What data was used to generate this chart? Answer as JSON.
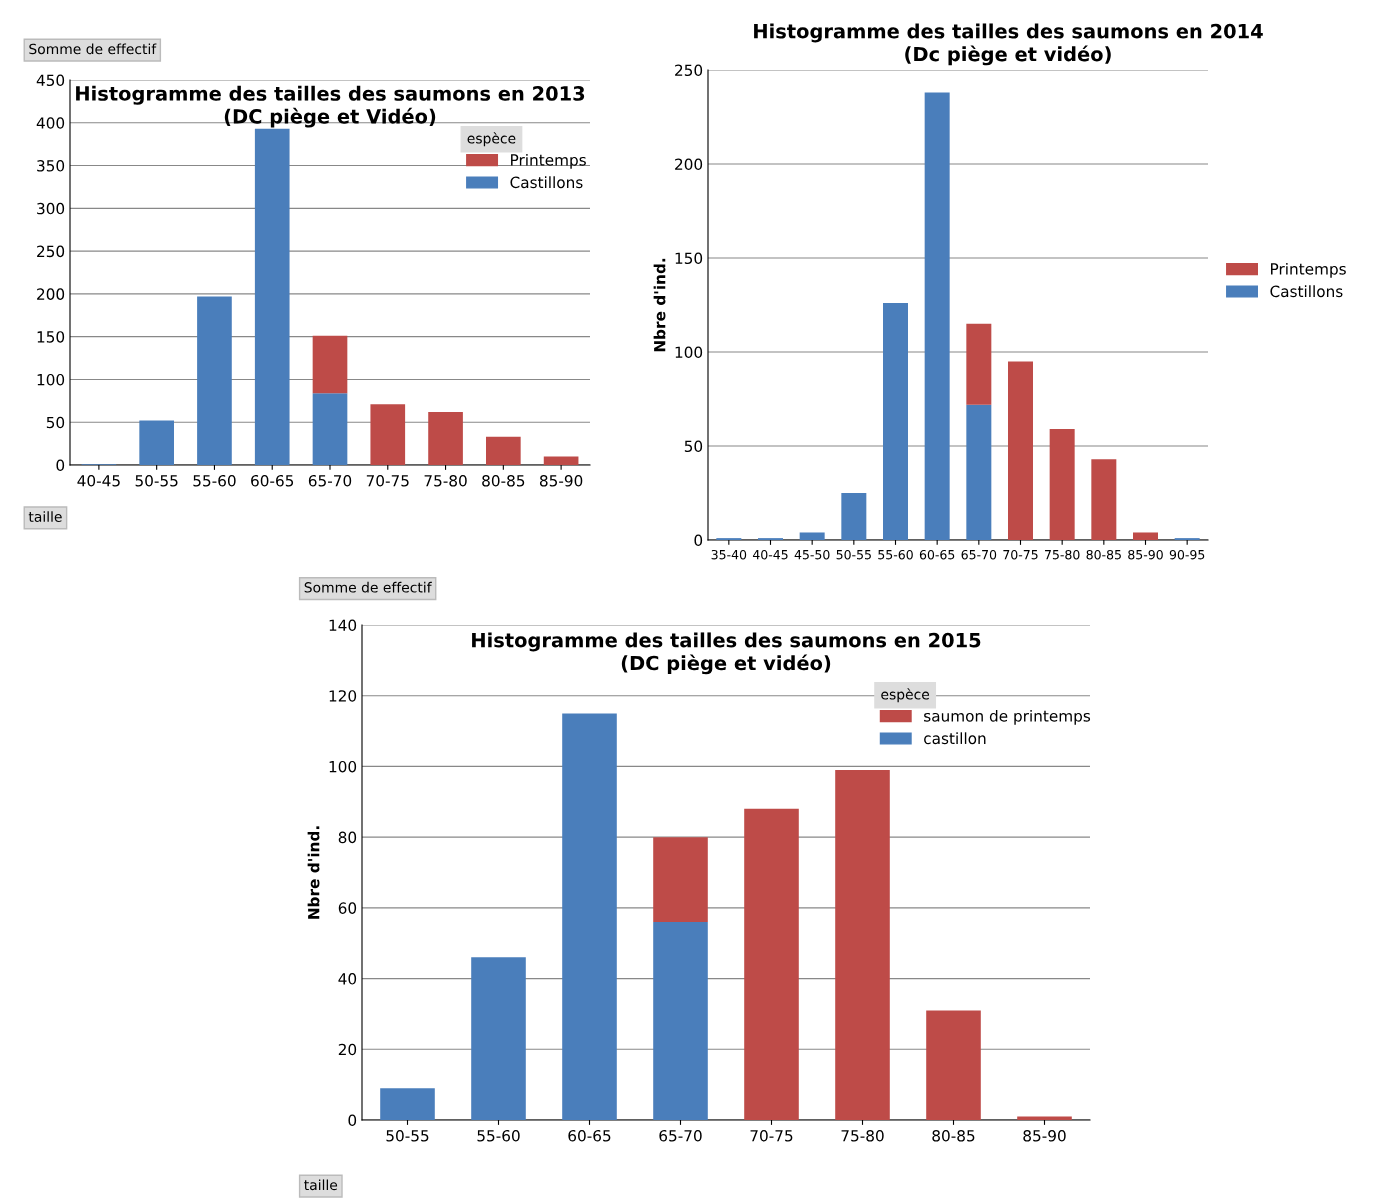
{
  "chart_data": [
    {
      "type": "bar",
      "stacked": true,
      "title": "Histogramme des tailles des saumons en 2013\n(DC piège et Vidéo)",
      "categories": [
        "40-45",
        "50-55",
        "55-60",
        "60-65",
        "65-70",
        "70-75",
        "75-80",
        "80-85",
        "85-90"
      ],
      "series": [
        {
          "name": "Castillons",
          "color": "#4a7ebb",
          "values": [
            1,
            52,
            197,
            393,
            84,
            0,
            0,
            0,
            0
          ]
        },
        {
          "name": "Printemps",
          "color": "#be4b48",
          "values": [
            0,
            0,
            0,
            0,
            67,
            71,
            62,
            33,
            10
          ]
        }
      ],
      "ylim": [
        0,
        450
      ],
      "yticks": [
        0,
        50,
        100,
        150,
        200,
        250,
        300,
        350,
        400,
        450
      ],
      "grid": "y",
      "legend": "top right",
      "legend_title": "espèce",
      "annotations": [
        "Somme de effectif",
        "taille"
      ]
    },
    {
      "type": "bar",
      "stacked": true,
      "title": "Histogramme des tailles des saumons en 2014\n(Dc piège et vidéo)",
      "ylabel": "Nbre d'ind.",
      "categories": [
        "35-40",
        "40-45",
        "45-50",
        "50-55",
        "55-60",
        "60-65",
        "65-70",
        "70-75",
        "75-80",
        "80-85",
        "85-90",
        "90-95"
      ],
      "series": [
        {
          "name": "Castillons",
          "color": "#4a7ebb",
          "values": [
            1,
            1,
            4,
            25,
            126,
            238,
            72,
            0,
            0,
            0,
            0,
            1
          ]
        },
        {
          "name": "Printemps",
          "color": "#be4b48",
          "values": [
            0,
            0,
            0,
            0,
            0,
            0,
            43,
            95,
            59,
            43,
            4,
            0
          ]
        }
      ],
      "ylim": [
        0,
        250
      ],
      "yticks": [
        0,
        50,
        100,
        150,
        200,
        250
      ],
      "grid": "y",
      "legend": "right"
    },
    {
      "type": "bar",
      "stacked": true,
      "title": "Histogramme des tailles des saumons en 2015\n(DC piège et vidéo)",
      "ylabel": "Nbre d'ind.",
      "categories": [
        "50-55",
        "55-60",
        "60-65",
        "65-70",
        "70-75",
        "75-80",
        "80-85",
        "85-90"
      ],
      "series": [
        {
          "name": "castillon",
          "color": "#4a7ebb",
          "values": [
            9,
            46,
            115,
            56,
            0,
            0,
            0,
            0
          ]
        },
        {
          "name": "saumon de printemps",
          "color": "#be4b48",
          "values": [
            0,
            0,
            0,
            24,
            88,
            99,
            31,
            1
          ]
        }
      ],
      "ylim": [
        0,
        140
      ],
      "yticks": [
        0,
        20,
        40,
        60,
        80,
        100,
        120,
        140
      ],
      "grid": "y",
      "legend": "top right",
      "legend_title": "espèce",
      "annotations": [
        "Somme de effectif",
        "taille"
      ]
    }
  ]
}
